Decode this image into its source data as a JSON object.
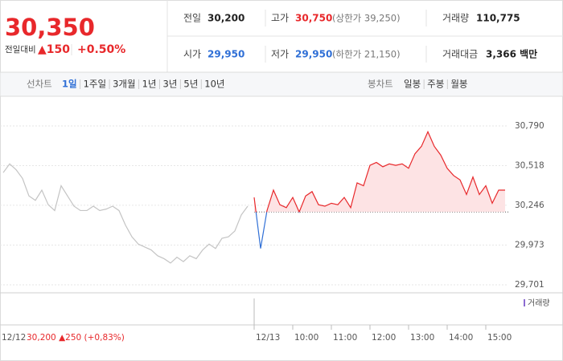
{
  "quote": {
    "price": "30,350",
    "change_label": "전일대비",
    "change": "▲150",
    "change_rate": "+0.50%",
    "fields": [
      {
        "label": "전일",
        "value": "30,200"
      },
      {
        "label": "고가",
        "value": "30,750",
        "extra": "(상한가 39,250)"
      },
      {
        "label": "거래량",
        "value": "110,775"
      },
      {
        "label": "시가",
        "value": "29,950"
      },
      {
        "label": "저가",
        "value": "29,950",
        "extra": "(하한가 21,150)"
      },
      {
        "label": "거래대금",
        "value": "3,366 백만"
      }
    ]
  },
  "tabs": {
    "line_label": "선차트",
    "line_options": [
      "1일",
      "1주일",
      "3개월",
      "1년",
      "3년",
      "5년",
      "10년"
    ],
    "candle_label": "봉차트",
    "candle_options": [
      "일봉",
      "주봉",
      "월봉"
    ]
  },
  "chart_data": {
    "type": "line",
    "categories": [
      "12/12",
      null,
      null,
      null,
      null,
      null,
      null,
      null,
      null,
      null,
      null,
      null,
      null,
      null,
      null,
      null,
      null,
      null,
      null,
      null,
      null,
      null,
      null,
      null,
      null,
      null,
      null,
      null,
      null,
      null,
      null,
      null,
      null,
      null,
      null,
      null,
      null,
      null,
      null,
      "12/13",
      null,
      null,
      null,
      null,
      null,
      "10:00",
      null,
      null,
      null,
      null,
      null,
      "11:00",
      null,
      null,
      null,
      null,
      null,
      "12:00",
      null,
      null,
      null,
      null,
      null,
      "13:00",
      null,
      null,
      null,
      null,
      null,
      "14:00",
      null,
      null,
      null,
      null,
      null,
      "15:00",
      null,
      null,
      null
    ],
    "series": [
      {
        "color": "#c4c4c4",
        "values": [
          30470,
          30530,
          30490,
          30430,
          30310,
          30280,
          30350,
          30250,
          30210,
          30380,
          30310,
          30240,
          30210,
          30210,
          30240,
          30210,
          30220,
          30240,
          30210,
          30110,
          30030,
          29980,
          29960,
          29940,
          29900,
          29880,
          29850,
          29890,
          29860,
          29900,
          29880,
          29940,
          29980,
          29950,
          30020,
          30030,
          30070,
          30180,
          30240,
          null,
          null,
          null,
          null,
          null,
          null,
          null,
          null,
          null,
          null,
          null,
          null,
          null,
          null,
          null,
          null,
          null,
          null,
          null,
          null,
          null,
          null,
          null,
          null,
          null,
          null,
          null,
          null,
          null,
          null,
          null,
          null,
          null,
          null,
          null,
          null,
          null,
          null,
          null,
          null
        ]
      },
      {
        "color": "#e8282b",
        "down_color": "#2f6fd6",
        "fill": "#fde3e4",
        "values": [
          null,
          null,
          null,
          null,
          null,
          null,
          null,
          null,
          null,
          null,
          null,
          null,
          null,
          null,
          null,
          null,
          null,
          null,
          null,
          null,
          null,
          null,
          null,
          null,
          null,
          null,
          null,
          null,
          null,
          null,
          null,
          null,
          null,
          null,
          null,
          null,
          null,
          null,
          null,
          30300,
          29950,
          30210,
          30350,
          30250,
          30230,
          30300,
          30200,
          30310,
          30340,
          30250,
          30240,
          30260,
          30250,
          30300,
          30230,
          30400,
          30380,
          30520,
          30540,
          30510,
          30530,
          30520,
          30530,
          30500,
          30600,
          30650,
          30750,
          30650,
          30590,
          30500,
          30450,
          30420,
          30320,
          30440,
          30320,
          30380,
          30260,
          30350,
          30350
        ]
      }
    ],
    "base_value": 30200,
    "ylim": [
      29646,
      30867
    ],
    "yticks": [
      {
        "value": 30790,
        "label": "30,790"
      },
      {
        "value": 30518,
        "label": "30,518"
      },
      {
        "value": 30246,
        "label": "30,246"
      },
      {
        "value": 29973,
        "label": "29,973"
      },
      {
        "value": 29701,
        "label": "29,701"
      }
    ],
    "grid": true,
    "volume_label": "거래량",
    "prev_day_note": "30,200 ▲250 (+0,83%)"
  }
}
